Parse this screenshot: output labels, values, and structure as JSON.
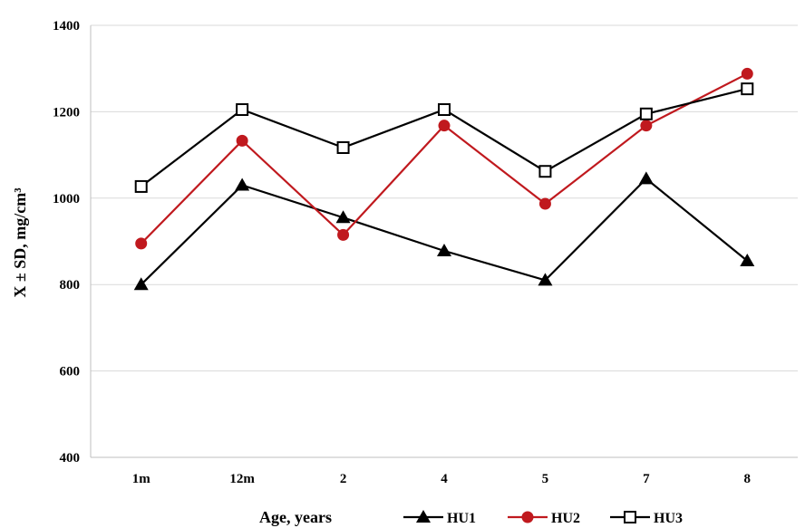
{
  "chart_data": {
    "type": "line",
    "title": "",
    "xlabel": "Age, years",
    "ylabel": "X ± SD, mg/cm³",
    "categories": [
      "1m",
      "12m",
      "2",
      "4",
      "5",
      "7",
      "8"
    ],
    "ylim": [
      400,
      1400
    ],
    "yticks": [
      400,
      600,
      800,
      1000,
      1200,
      1400
    ],
    "grid": "horizontal",
    "legend": "bottom",
    "series": [
      {
        "name": "HU1",
        "marker": "triangle",
        "color": "#000000",
        "values": [
          800,
          1030,
          955,
          878,
          810,
          1045,
          855
        ]
      },
      {
        "name": "HU2",
        "marker": "circle",
        "color": "#c0191e",
        "values": [
          895,
          1133,
          915,
          1168,
          987,
          1168,
          1288
        ]
      },
      {
        "name": "HU3",
        "marker": "square-open",
        "color": "#000000",
        "values": [
          1027,
          1205,
          1117,
          1205,
          1062,
          1195,
          1253
        ]
      }
    ]
  }
}
